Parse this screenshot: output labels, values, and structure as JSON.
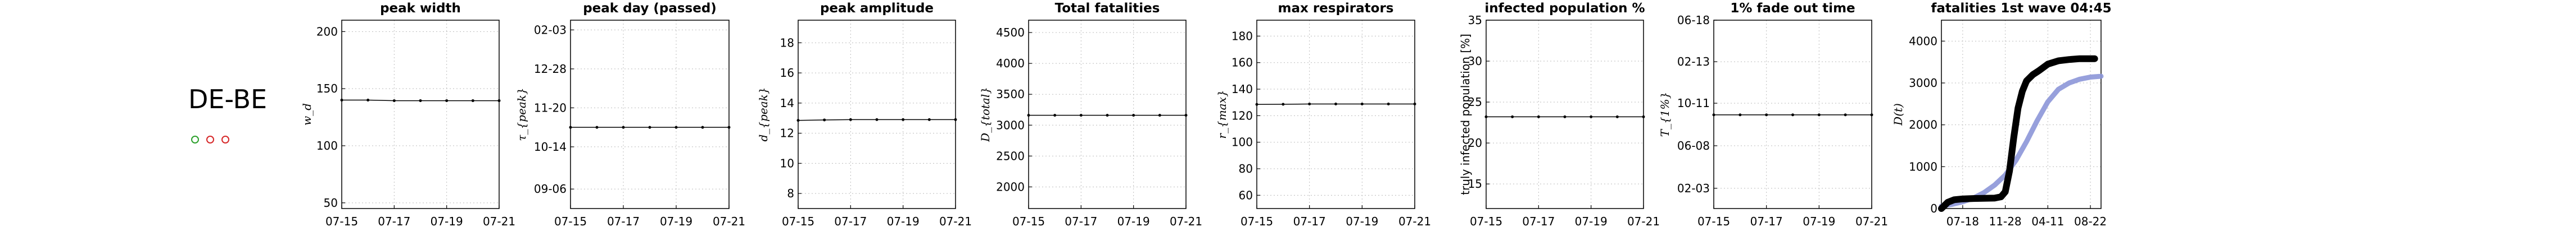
{
  "region": {
    "label": "DE-BE",
    "dot_colors": [
      "#2ca02c",
      "#d62728",
      "#d62728"
    ]
  },
  "colors": {
    "line": "#000000",
    "fit": "#8c96d8",
    "grid": "#bbbbbb"
  },
  "chart_data": [
    {
      "type": "line",
      "title": "peak width",
      "ylabel": "w_d",
      "x": [
        "07-15",
        "07-16",
        "07-17",
        "07-18",
        "07-19",
        "07-20",
        "07-21"
      ],
      "xticks": [
        "07-15",
        "07-17",
        "07-19",
        "07-21"
      ],
      "series": [
        {
          "values": [
            140,
            140,
            139.5,
            139.5,
            139.5,
            139.5,
            139.5
          ]
        }
      ],
      "yticks": [
        50,
        100,
        150,
        200
      ],
      "ytick_labels": [
        "50",
        "100",
        "150",
        "200"
      ],
      "ylim": [
        45,
        210
      ],
      "grid": true
    },
    {
      "type": "line",
      "title": "peak day (passed)",
      "ylabel": "τ_{peak}",
      "x": [
        "07-15",
        "07-16",
        "07-17",
        "07-18",
        "07-19",
        "07-20",
        "07-21"
      ],
      "xticks": [
        "07-15",
        "07-17",
        "07-19",
        "07-21"
      ],
      "series": [
        {
          "values": [
            11.1,
            11.1,
            11.1,
            11.1,
            11.1,
            11.1,
            11.1
          ]
        }
      ],
      "yticks": [
        9.2,
        10.5,
        11.7,
        12.9,
        14.1
      ],
      "ytick_labels": [
        "09-06",
        "10-14",
        "11-20",
        "12-28",
        "02-03"
      ],
      "ylim": [
        8.6,
        14.4
      ],
      "grid": true
    },
    {
      "type": "line",
      "title": "peak amplitude",
      "ylabel": "d_{peak}",
      "x": [
        "07-15",
        "07-16",
        "07-17",
        "07-18",
        "07-19",
        "07-20",
        "07-21"
      ],
      "xticks": [
        "07-15",
        "07-17",
        "07-19",
        "07-21"
      ],
      "series": [
        {
          "values": [
            12.85,
            12.88,
            12.9,
            12.9,
            12.9,
            12.9,
            12.9
          ]
        }
      ],
      "yticks": [
        8,
        10,
        12,
        14,
        16,
        18
      ],
      "ytick_labels": [
        "8",
        "10",
        "12",
        "14",
        "16",
        "18"
      ],
      "ylim": [
        7,
        19.5
      ],
      "grid": true
    },
    {
      "type": "line",
      "title": "Total fatalities",
      "ylabel": "D_{total}",
      "x": [
        "07-15",
        "07-16",
        "07-17",
        "07-18",
        "07-19",
        "07-20",
        "07-21"
      ],
      "xticks": [
        "07-15",
        "07-17",
        "07-19",
        "07-21"
      ],
      "series": [
        {
          "values": [
            3160,
            3160,
            3160,
            3160,
            3160,
            3160,
            3160
          ]
        }
      ],
      "yticks": [
        2000,
        2500,
        3000,
        3500,
        4000,
        4500
      ],
      "ytick_labels": [
        "2000",
        "2500",
        "3000",
        "3500",
        "4000",
        "4500"
      ],
      "ylim": [
        1650,
        4700
      ],
      "grid": true
    },
    {
      "type": "line",
      "title": "max respirators",
      "ylabel": "r_{max}",
      "x": [
        "07-15",
        "07-16",
        "07-17",
        "07-18",
        "07-19",
        "07-20",
        "07-21"
      ],
      "xticks": [
        "07-15",
        "07-17",
        "07-19",
        "07-21"
      ],
      "series": [
        {
          "values": [
            128.5,
            128.6,
            128.8,
            128.8,
            128.8,
            128.8,
            128.8
          ]
        }
      ],
      "yticks": [
        60,
        80,
        100,
        120,
        140,
        160,
        180
      ],
      "ytick_labels": [
        "60",
        "80",
        "100",
        "120",
        "140",
        "160",
        "180"
      ],
      "ylim": [
        50,
        192
      ],
      "grid": true
    },
    {
      "type": "line",
      "title": "infected population %",
      "ylabel": "truly infected population [%]",
      "x": [
        "07-15",
        "07-16",
        "07-17",
        "07-18",
        "07-19",
        "07-20",
        "07-21"
      ],
      "xticks": [
        "07-15",
        "07-17",
        "07-19",
        "07-21"
      ],
      "series": [
        {
          "values": [
            23.2,
            23.2,
            23.2,
            23.2,
            23.2,
            23.2,
            23.2
          ]
        }
      ],
      "yticks": [
        15,
        20,
        25,
        30,
        35
      ],
      "ytick_labels": [
        "15",
        "20",
        "25",
        "30",
        "35"
      ],
      "ylim": [
        12,
        35
      ],
      "grid": true
    },
    {
      "type": "line",
      "title": "1% fade out time",
      "ylabel": "T_{1%}",
      "x": [
        "07-15",
        "07-16",
        "07-17",
        "07-18",
        "07-19",
        "07-20",
        "07-21"
      ],
      "xticks": [
        "07-15",
        "07-17",
        "07-19",
        "07-21"
      ],
      "series": [
        {
          "values": [
            9.25,
            9.25,
            9.25,
            9.25,
            9.25,
            9.25,
            9.25
          ]
        }
      ],
      "yticks": [
        2,
        6.2,
        10.4,
        14.5,
        18.6
      ],
      "ytick_labels": [
        "02-03",
        "06-08",
        "10-11",
        "02-13",
        "06-18"
      ],
      "ylim": [
        0,
        18.6
      ],
      "grid": true
    },
    {
      "type": "line",
      "title": "fatalities 1st wave 04:45",
      "ylabel": "D(t)",
      "xticks_pos": [
        1,
        3,
        5,
        7
      ],
      "xticks": [
        "07-18",
        "11-28",
        "04-11",
        "08-22"
      ],
      "xlim": [
        0,
        7.5
      ],
      "ylim": [
        0,
        4500
      ],
      "yticks": [
        0,
        1000,
        2000,
        3000,
        4000
      ],
      "ytick_labels": [
        "0",
        "1000",
        "2000",
        "3000",
        "4000"
      ],
      "series": [
        {
          "role": "fit",
          "x": [
            0,
            0.5,
            1,
            1.5,
            2,
            2.5,
            3,
            3.5,
            4,
            4.5,
            5,
            5.5,
            6,
            6.5,
            7,
            7.5
          ],
          "values": [
            60,
            100,
            160,
            250,
            380,
            560,
            800,
            1150,
            1600,
            2100,
            2550,
            2850,
            3000,
            3090,
            3140,
            3160
          ]
        },
        {
          "role": "observed",
          "x": [
            0,
            0.3,
            0.6,
            1,
            1.5,
            2,
            2.5,
            2.8,
            3,
            3.2,
            3.4,
            3.6,
            3.8,
            4,
            4.3,
            4.6,
            5,
            5.5,
            6,
            6.5,
            7.2
          ],
          "values": [
            0,
            150,
            210,
            230,
            240,
            245,
            250,
            280,
            400,
            900,
            1700,
            2400,
            2800,
            3050,
            3200,
            3300,
            3450,
            3530,
            3560,
            3580,
            3580
          ]
        }
      ],
      "grid": true
    }
  ]
}
